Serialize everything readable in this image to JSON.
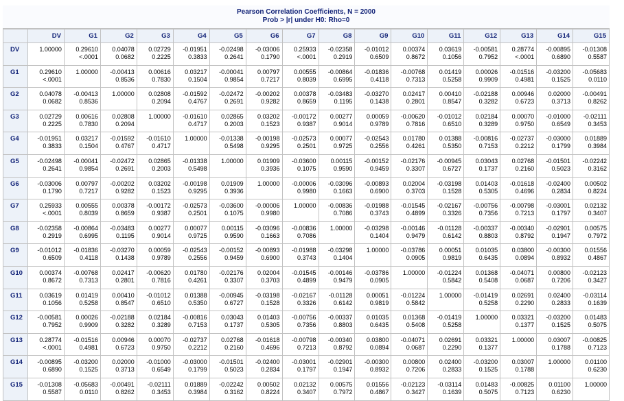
{
  "title_line1": "Pearson Correlation Coefficients, N = 2000",
  "title_line2": "Prob > |r| under H0: Rho=0",
  "variables": [
    "DV",
    "G1",
    "G2",
    "G3",
    "G4",
    "G5",
    "G6",
    "G7",
    "G8",
    "G9",
    "G10",
    "G11",
    "G12",
    "G13",
    "G14",
    "G15"
  ],
  "rows": [
    {
      "name": "DV",
      "cells": [
        [
          "1.00000",
          ""
        ],
        [
          "0.29610",
          "<.0001"
        ],
        [
          "0.04078",
          "0.0682"
        ],
        [
          "0.02729",
          "0.2225"
        ],
        [
          "-0.01951",
          "0.3833"
        ],
        [
          "-0.02498",
          "0.2641"
        ],
        [
          "-0.03006",
          "0.1790"
        ],
        [
          "0.25933",
          "<.0001"
        ],
        [
          "-0.02358",
          "0.2919"
        ],
        [
          "-0.01012",
          "0.6509"
        ],
        [
          "0.00374",
          "0.8672"
        ],
        [
          "0.03619",
          "0.1056"
        ],
        [
          "-0.00581",
          "0.7952"
        ],
        [
          "0.28774",
          "<.0001"
        ],
        [
          "-0.00895",
          "0.6890"
        ],
        [
          "-0.01308",
          "0.5587"
        ]
      ]
    },
    {
      "name": "G1",
      "cells": [
        [
          "0.29610",
          "<.0001"
        ],
        [
          "1.00000",
          ""
        ],
        [
          "-0.00413",
          "0.8536"
        ],
        [
          "0.00616",
          "0.7830"
        ],
        [
          "0.03217",
          "0.1504"
        ],
        [
          "-0.00041",
          "0.9854"
        ],
        [
          "0.00797",
          "0.7217"
        ],
        [
          "0.00555",
          "0.8039"
        ],
        [
          "-0.00864",
          "0.6995"
        ],
        [
          "-0.01836",
          "0.4118"
        ],
        [
          "-0.00768",
          "0.7313"
        ],
        [
          "0.01419",
          "0.5258"
        ],
        [
          "0.00026",
          "0.9909"
        ],
        [
          "-0.01516",
          "0.4981"
        ],
        [
          "-0.03200",
          "0.1525"
        ],
        [
          "-0.05683",
          "0.0110"
        ]
      ]
    },
    {
      "name": "G2",
      "cells": [
        [
          "0.04078",
          "0.0682"
        ],
        [
          "-0.00413",
          "0.8536"
        ],
        [
          "1.00000",
          ""
        ],
        [
          "0.02808",
          "0.2094"
        ],
        [
          "-0.01592",
          "0.4767"
        ],
        [
          "-0.02472",
          "0.2691"
        ],
        [
          "-0.00202",
          "0.9282"
        ],
        [
          "0.00378",
          "0.8659"
        ],
        [
          "-0.03483",
          "0.1195"
        ],
        [
          "-0.03270",
          "0.1438"
        ],
        [
          "0.02417",
          "0.2801"
        ],
        [
          "0.00410",
          "0.8547"
        ],
        [
          "-0.02188",
          "0.3282"
        ],
        [
          "0.00946",
          "0.6723"
        ],
        [
          "0.02000",
          "0.3713"
        ],
        [
          "-0.00491",
          "0.8262"
        ]
      ]
    },
    {
      "name": "G3",
      "cells": [
        [
          "0.02729",
          "0.2225"
        ],
        [
          "0.00616",
          "0.7830"
        ],
        [
          "0.02808",
          "0.2094"
        ],
        [
          "1.00000",
          ""
        ],
        [
          "-0.01610",
          "0.4717"
        ],
        [
          "0.02865",
          "0.2003"
        ],
        [
          "0.03202",
          "0.1523"
        ],
        [
          "-0.00172",
          "0.9387"
        ],
        [
          "0.00277",
          "0.9014"
        ],
        [
          "0.00059",
          "0.9789"
        ],
        [
          "-0.00620",
          "0.7816"
        ],
        [
          "-0.01012",
          "0.6510"
        ],
        [
          "0.02184",
          "0.3289"
        ],
        [
          "0.00070",
          "0.9750"
        ],
        [
          "-0.01000",
          "0.6549"
        ],
        [
          "-0.02111",
          "0.3453"
        ]
      ]
    },
    {
      "name": "G4",
      "cells": [
        [
          "-0.01951",
          "0.3833"
        ],
        [
          "0.03217",
          "0.1504"
        ],
        [
          "-0.01592",
          "0.4767"
        ],
        [
          "-0.01610",
          "0.4717"
        ],
        [
          "1.00000",
          ""
        ],
        [
          "-0.01338",
          "0.5498"
        ],
        [
          "-0.00198",
          "0.9295"
        ],
        [
          "-0.02573",
          "0.2501"
        ],
        [
          "0.00077",
          "0.9725"
        ],
        [
          "-0.02543",
          "0.2556"
        ],
        [
          "0.01780",
          "0.4261"
        ],
        [
          "0.01388",
          "0.5350"
        ],
        [
          "-0.00816",
          "0.7153"
        ],
        [
          "-0.02737",
          "0.2212"
        ],
        [
          "-0.03000",
          "0.1799"
        ],
        [
          "0.01889",
          "0.3984"
        ]
      ]
    },
    {
      "name": "G5",
      "cells": [
        [
          "-0.02498",
          "0.2641"
        ],
        [
          "-0.00041",
          "0.9854"
        ],
        [
          "-0.02472",
          "0.2691"
        ],
        [
          "0.02865",
          "0.2003"
        ],
        [
          "-0.01338",
          "0.5498"
        ],
        [
          "1.00000",
          ""
        ],
        [
          "0.01909",
          "0.3936"
        ],
        [
          "-0.03600",
          "0.1075"
        ],
        [
          "0.00115",
          "0.9590"
        ],
        [
          "-0.00152",
          "0.9459"
        ],
        [
          "-0.02176",
          "0.3307"
        ],
        [
          "-0.00945",
          "0.6727"
        ],
        [
          "0.03043",
          "0.1737"
        ],
        [
          "0.02768",
          "0.2160"
        ],
        [
          "-0.01501",
          "0.5023"
        ],
        [
          "-0.02242",
          "0.3162"
        ]
      ]
    },
    {
      "name": "G6",
      "cells": [
        [
          "-0.03006",
          "0.1790"
        ],
        [
          "0.00797",
          "0.7217"
        ],
        [
          "-0.00202",
          "0.9282"
        ],
        [
          "0.03202",
          "0.1523"
        ],
        [
          "-0.00198",
          "0.9295"
        ],
        [
          "0.01909",
          "0.3936"
        ],
        [
          "1.00000",
          ""
        ],
        [
          "-0.00006",
          "0.9980"
        ],
        [
          "-0.03096",
          "0.1663"
        ],
        [
          "-0.00893",
          "0.6900"
        ],
        [
          "0.02004",
          "0.3703"
        ],
        [
          "-0.03198",
          "0.1528"
        ],
        [
          "0.01403",
          "0.5305"
        ],
        [
          "-0.01618",
          "0.4696"
        ],
        [
          "-0.02400",
          "0.2834"
        ],
        [
          "0.00502",
          "0.8224"
        ]
      ]
    },
    {
      "name": "G7",
      "cells": [
        [
          "0.25933",
          "<.0001"
        ],
        [
          "0.00555",
          "0.8039"
        ],
        [
          "0.00378",
          "0.8659"
        ],
        [
          "-0.00172",
          "0.9387"
        ],
        [
          "-0.02573",
          "0.2501"
        ],
        [
          "-0.03600",
          "0.1075"
        ],
        [
          "-0.00006",
          "0.9980"
        ],
        [
          "1.00000",
          ""
        ],
        [
          "-0.00836",
          "0.7086"
        ],
        [
          "-0.01988",
          "0.3743"
        ],
        [
          "-0.01545",
          "0.4899"
        ],
        [
          "-0.02167",
          "0.3326"
        ],
        [
          "-0.00756",
          "0.7356"
        ],
        [
          "-0.00798",
          "0.7213"
        ],
        [
          "-0.03001",
          "0.1797"
        ],
        [
          "0.02132",
          "0.3407"
        ]
      ]
    },
    {
      "name": "G8",
      "cells": [
        [
          "-0.02358",
          "0.2919"
        ],
        [
          "-0.00864",
          "0.6995"
        ],
        [
          "-0.03483",
          "0.1195"
        ],
        [
          "0.00277",
          "0.9014"
        ],
        [
          "0.00077",
          "0.9725"
        ],
        [
          "0.00115",
          "0.9590"
        ],
        [
          "-0.03096",
          "0.1663"
        ],
        [
          "-0.00836",
          "0.7086"
        ],
        [
          "1.00000",
          ""
        ],
        [
          "-0.03298",
          "0.1404"
        ],
        [
          "-0.00146",
          "0.9479"
        ],
        [
          "-0.01128",
          "0.6142"
        ],
        [
          "-0.00337",
          "0.8803"
        ],
        [
          "-0.00340",
          "0.8792"
        ],
        [
          "-0.02901",
          "0.1947"
        ],
        [
          "0.00575",
          "0.7972"
        ]
      ]
    },
    {
      "name": "G9",
      "cells": [
        [
          "-0.01012",
          "0.6509"
        ],
        [
          "-0.01836",
          "0.4118"
        ],
        [
          "-0.03270",
          "0.1438"
        ],
        [
          "0.00059",
          "0.9789"
        ],
        [
          "-0.02543",
          "0.2556"
        ],
        [
          "-0.00152",
          "0.9459"
        ],
        [
          "-0.00893",
          "0.6900"
        ],
        [
          "-0.01988",
          "0.3743"
        ],
        [
          "-0.03298",
          "0.1404"
        ],
        [
          "1.00000",
          ""
        ],
        [
          "-0.03786",
          "0.0905"
        ],
        [
          "0.00051",
          "0.9819"
        ],
        [
          "0.01035",
          "0.6435"
        ],
        [
          "0.03800",
          "0.0894"
        ],
        [
          "-0.00300",
          "0.8932"
        ],
        [
          "0.01556",
          "0.4867"
        ]
      ]
    },
    {
      "name": "G10",
      "cells": [
        [
          "0.00374",
          "0.8672"
        ],
        [
          "-0.00768",
          "0.7313"
        ],
        [
          "0.02417",
          "0.2801"
        ],
        [
          "-0.00620",
          "0.7816"
        ],
        [
          "0.01780",
          "0.4261"
        ],
        [
          "-0.02176",
          "0.3307"
        ],
        [
          "0.02004",
          "0.3703"
        ],
        [
          "-0.01545",
          "0.4899"
        ],
        [
          "-0.00146",
          "0.9479"
        ],
        [
          "-0.03786",
          "0.0905"
        ],
        [
          "1.00000",
          ""
        ],
        [
          "-0.01224",
          "0.5842"
        ],
        [
          "0.01368",
          "0.5408"
        ],
        [
          "-0.04071",
          "0.0687"
        ],
        [
          "0.00800",
          "0.7206"
        ],
        [
          "-0.02123",
          "0.3427"
        ]
      ]
    },
    {
      "name": "G11",
      "cells": [
        [
          "0.03619",
          "0.1056"
        ],
        [
          "0.01419",
          "0.5258"
        ],
        [
          "0.00410",
          "0.8547"
        ],
        [
          "-0.01012",
          "0.6510"
        ],
        [
          "0.01388",
          "0.5350"
        ],
        [
          "-0.00945",
          "0.6727"
        ],
        [
          "-0.03198",
          "0.1528"
        ],
        [
          "-0.02167",
          "0.3326"
        ],
        [
          "-0.01128",
          "0.6142"
        ],
        [
          "0.00051",
          "0.9819"
        ],
        [
          "-0.01224",
          "0.5842"
        ],
        [
          "1.00000",
          ""
        ],
        [
          "-0.01419",
          "0.5258"
        ],
        [
          "0.02691",
          "0.2290"
        ],
        [
          "0.02400",
          "0.2833"
        ],
        [
          "-0.03114",
          "0.1639"
        ]
      ]
    },
    {
      "name": "G12",
      "cells": [
        [
          "-0.00581",
          "0.7952"
        ],
        [
          "0.00026",
          "0.9909"
        ],
        [
          "-0.02188",
          "0.3282"
        ],
        [
          "0.02184",
          "0.3289"
        ],
        [
          "-0.00816",
          "0.7153"
        ],
        [
          "0.03043",
          "0.1737"
        ],
        [
          "0.01403",
          "0.5305"
        ],
        [
          "-0.00756",
          "0.7356"
        ],
        [
          "-0.00337",
          "0.8803"
        ],
        [
          "0.01035",
          "0.6435"
        ],
        [
          "0.01368",
          "0.5408"
        ],
        [
          "-0.01419",
          "0.5258"
        ],
        [
          "1.00000",
          ""
        ],
        [
          "0.03321",
          "0.1377"
        ],
        [
          "-0.03200",
          "0.1525"
        ],
        [
          "0.01483",
          "0.5075"
        ]
      ]
    },
    {
      "name": "G13",
      "cells": [
        [
          "0.28774",
          "<.0001"
        ],
        [
          "-0.01516",
          "0.4981"
        ],
        [
          "0.00946",
          "0.6723"
        ],
        [
          "0.00070",
          "0.9750"
        ],
        [
          "-0.02737",
          "0.2212"
        ],
        [
          "0.02768",
          "0.2160"
        ],
        [
          "-0.01618",
          "0.4696"
        ],
        [
          "-0.00798",
          "0.7213"
        ],
        [
          "-0.00340",
          "0.8792"
        ],
        [
          "0.03800",
          "0.0894"
        ],
        [
          "-0.04071",
          "0.0687"
        ],
        [
          "0.02691",
          "0.2290"
        ],
        [
          "0.03321",
          "0.1377"
        ],
        [
          "1.00000",
          ""
        ],
        [
          "0.03007",
          "0.1788"
        ],
        [
          "-0.00825",
          "0.7123"
        ]
      ]
    },
    {
      "name": "G14",
      "cells": [
        [
          "-0.00895",
          "0.6890"
        ],
        [
          "-0.03200",
          "0.1525"
        ],
        [
          "0.02000",
          "0.3713"
        ],
        [
          "-0.01000",
          "0.6549"
        ],
        [
          "-0.03000",
          "0.1799"
        ],
        [
          "-0.01501",
          "0.5023"
        ],
        [
          "-0.02400",
          "0.2834"
        ],
        [
          "-0.03001",
          "0.1797"
        ],
        [
          "-0.02901",
          "0.1947"
        ],
        [
          "-0.00300",
          "0.8932"
        ],
        [
          "0.00800",
          "0.7206"
        ],
        [
          "0.02400",
          "0.2833"
        ],
        [
          "-0.03200",
          "0.1525"
        ],
        [
          "0.03007",
          "0.1788"
        ],
        [
          "1.00000",
          ""
        ],
        [
          "0.01100",
          "0.6230"
        ]
      ]
    },
    {
      "name": "G15",
      "cells": [
        [
          "-0.01308",
          "0.5587"
        ],
        [
          "-0.05683",
          "0.0110"
        ],
        [
          "-0.00491",
          "0.8262"
        ],
        [
          "-0.02111",
          "0.3453"
        ],
        [
          "0.01889",
          "0.3984"
        ],
        [
          "-0.02242",
          "0.3162"
        ],
        [
          "0.00502",
          "0.8224"
        ],
        [
          "0.02132",
          "0.3407"
        ],
        [
          "0.00575",
          "0.7972"
        ],
        [
          "0.01556",
          "0.4867"
        ],
        [
          "-0.02123",
          "0.3427"
        ],
        [
          "-0.03114",
          "0.1639"
        ],
        [
          "0.01483",
          "0.5075"
        ],
        [
          "-0.00825",
          "0.7123"
        ],
        [
          "0.01100",
          "0.6230"
        ],
        [
          "1.00000",
          ""
        ]
      ]
    }
  ]
}
